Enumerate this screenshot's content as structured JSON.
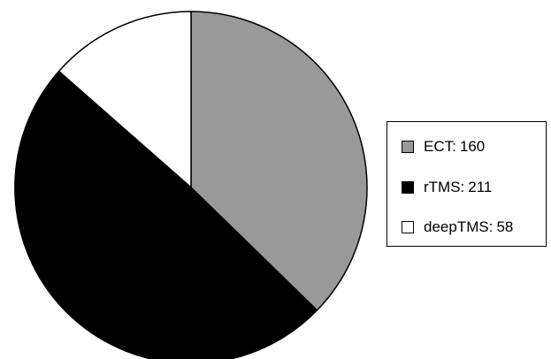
{
  "chart_data": {
    "type": "pie",
    "title": "",
    "slices": [
      {
        "label": "ECT",
        "value": 160,
        "color": "#999999"
      },
      {
        "label": "rTMS",
        "value": 211,
        "color": "#000000"
      },
      {
        "label": "deepTMS",
        "value": 58,
        "color": "#ffffff"
      }
    ],
    "start_angle_deg": 0,
    "direction": "clockwise",
    "legend": {
      "position": "right",
      "separator": ":"
    },
    "slice_outline_color": "#000000"
  }
}
